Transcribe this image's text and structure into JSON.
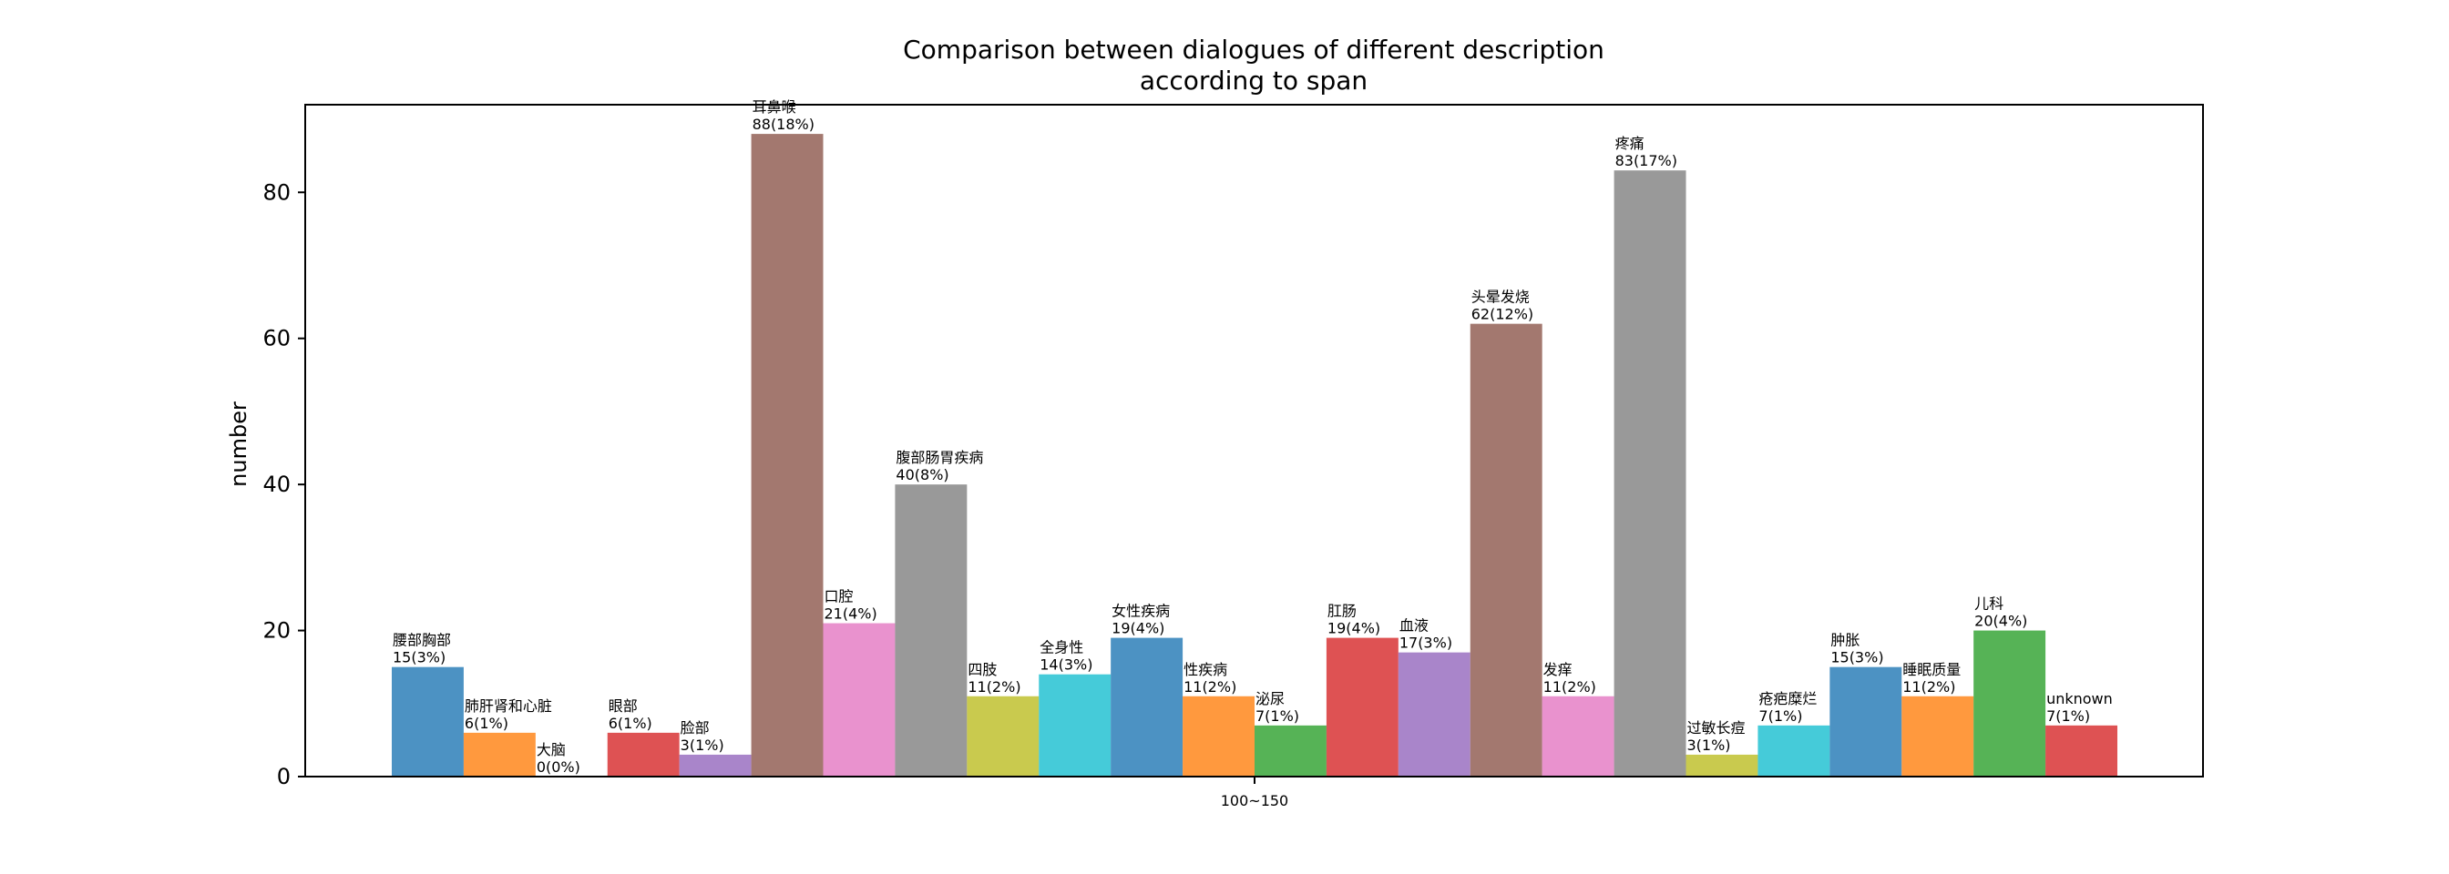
{
  "chart_data": {
    "type": "bar",
    "title_line1": "Comparison between dialogues of different description",
    "title_line2": "according to span",
    "xlabel": "",
    "ylabel": "number",
    "categories": [
      "100~150"
    ],
    "ylim": [
      0,
      92
    ],
    "yticks": [
      0,
      20,
      40,
      60,
      80
    ],
    "grid": false,
    "series": [
      {
        "name": "腰部胸部",
        "values": [
          15
        ],
        "label": "15(3%)",
        "color": "#1f77b4"
      },
      {
        "name": "肺肝肾和心脏",
        "values": [
          6
        ],
        "label": "6(1%)",
        "color": "#ff7f0e"
      },
      {
        "name": "大脑",
        "values": [
          0
        ],
        "label": "0(0%)",
        "color": "#2ca02c"
      },
      {
        "name": "眼部",
        "values": [
          6
        ],
        "label": "6(1%)",
        "color": "#d62728"
      },
      {
        "name": "脸部",
        "values": [
          3
        ],
        "label": "3(1%)",
        "color": "#9467bd"
      },
      {
        "name": "耳鼻喉",
        "values": [
          88
        ],
        "label": "88(18%)",
        "color": "#8c564b"
      },
      {
        "name": "口腔",
        "values": [
          21
        ],
        "label": "21(4%)",
        "color": "#e377c2"
      },
      {
        "name": "腹部肠胃疾病",
        "values": [
          40
        ],
        "label": "40(8%)",
        "color": "#7f7f7f"
      },
      {
        "name": "四肢",
        "values": [
          11
        ],
        "label": "11(2%)",
        "color": "#bcbd22"
      },
      {
        "name": "全身性",
        "values": [
          14
        ],
        "label": "14(3%)",
        "color": "#17becf"
      },
      {
        "name": "女性疾病",
        "values": [
          19
        ],
        "label": "19(4%)",
        "color": "#1f77b4"
      },
      {
        "name": "性疾病",
        "values": [
          11
        ],
        "label": "11(2%)",
        "color": "#ff7f0e"
      },
      {
        "name": "泌尿",
        "values": [
          7
        ],
        "label": "7(1%)",
        "color": "#2ca02c"
      },
      {
        "name": "肛肠",
        "values": [
          19
        ],
        "label": "19(4%)",
        "color": "#d62728"
      },
      {
        "name": "血液",
        "values": [
          17
        ],
        "label": "17(3%)",
        "color": "#9467bd"
      },
      {
        "name": "头晕发烧",
        "values": [
          62
        ],
        "label": "62(12%)",
        "color": "#8c564b"
      },
      {
        "name": "发痒",
        "values": [
          11
        ],
        "label": "11(2%)",
        "color": "#e377c2"
      },
      {
        "name": "疼痛",
        "values": [
          83
        ],
        "label": "83(17%)",
        "color": "#7f7f7f"
      },
      {
        "name": "过敏长痘",
        "values": [
          3
        ],
        "label": "3(1%)",
        "color": "#bcbd22"
      },
      {
        "name": "疮疤糜烂",
        "values": [
          7
        ],
        "label": "7(1%)",
        "color": "#17becf"
      },
      {
        "name": "肿胀",
        "values": [
          15
        ],
        "label": "15(3%)",
        "color": "#1f77b4"
      },
      {
        "name": "睡眠质量",
        "values": [
          11
        ],
        "label": "11(2%)",
        "color": "#ff7f0e"
      },
      {
        "name": "儿科",
        "values": [
          20
        ],
        "label": "20(4%)",
        "color": "#2ca02c"
      },
      {
        "name": "unknown",
        "values": [
          7
        ],
        "label": "7(1%)",
        "color": "#d62728"
      }
    ]
  }
}
